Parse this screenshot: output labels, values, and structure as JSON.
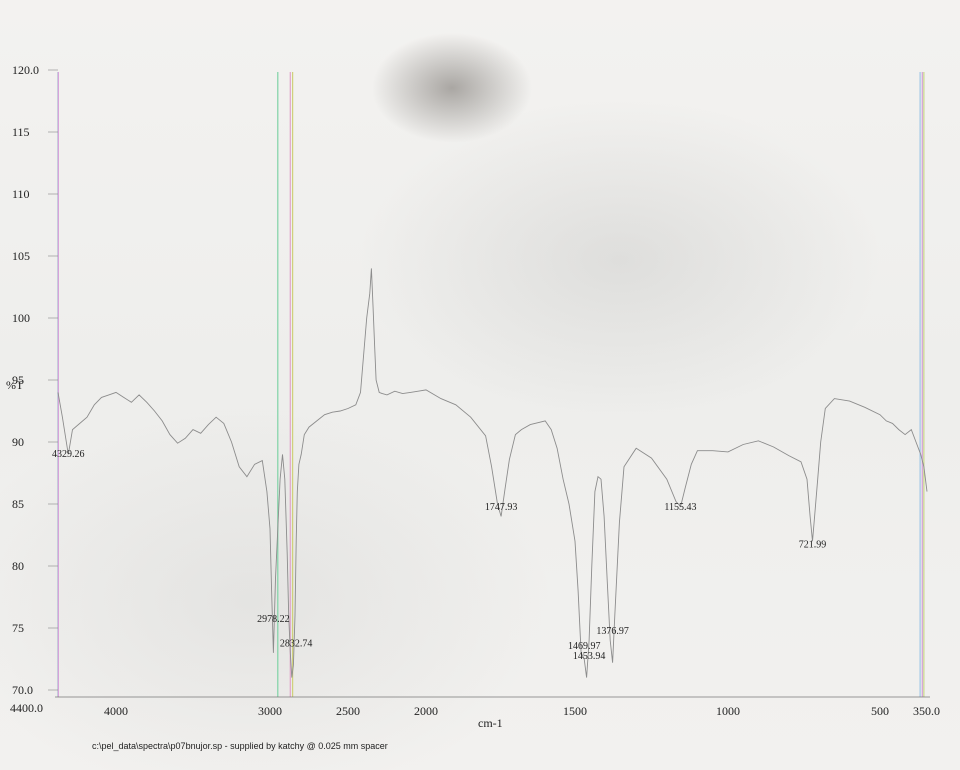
{
  "chart_data": {
    "type": "line",
    "title": "",
    "xlabel": "cm-1",
    "ylabel": "%T",
    "xlim": [
      4400.0,
      350.0
    ],
    "ylim": [
      70.0,
      120.0
    ],
    "x_reversed": true,
    "grid": false,
    "x_ticks": [
      {
        "value": 4400,
        "label": "4400.0"
      },
      {
        "value": 4000,
        "label": "4000"
      },
      {
        "value": 3000,
        "label": "3000"
      },
      {
        "value": 2500,
        "label": "2500"
      },
      {
        "value": 2000,
        "label": "2000"
      },
      {
        "value": 1500,
        "label": "1500"
      },
      {
        "value": 1000,
        "label": "1000"
      },
      {
        "value": 500,
        "label": "500"
      },
      {
        "value": 350,
        "label": "350.0"
      }
    ],
    "y_ticks": [
      {
        "value": 120,
        "label": "120.0"
      },
      {
        "value": 115,
        "label": "115"
      },
      {
        "value": 110,
        "label": "110"
      },
      {
        "value": 105,
        "label": "105"
      },
      {
        "value": 100,
        "label": "100"
      },
      {
        "value": 95,
        "label": "95"
      },
      {
        "value": 90,
        "label": "90"
      },
      {
        "value": 85,
        "label": "85"
      },
      {
        "value": 80,
        "label": "80"
      },
      {
        "value": 75,
        "label": "75"
      },
      {
        "value": 70,
        "label": "70.0"
      }
    ],
    "series": [
      {
        "x": [
          4400,
          4370,
          4329,
          4300,
          4250,
          4200,
          4150,
          4100,
          4050,
          4000,
          3950,
          3900,
          3850,
          3800,
          3750,
          3700,
          3650,
          3600,
          3550,
          3500,
          3450,
          3400,
          3350,
          3300,
          3250,
          3200,
          3150,
          3100,
          3050,
          3020,
          3000,
          2990,
          2978,
          2965,
          2950,
          2935,
          2920,
          2905,
          2890,
          2880,
          2870,
          2860,
          2850,
          2840,
          2832,
          2825,
          2815,
          2800,
          2780,
          2750,
          2700,
          2650,
          2600,
          2550,
          2500,
          2450,
          2420,
          2400,
          2380,
          2360,
          2350,
          2340,
          2330,
          2320,
          2300,
          2280,
          2250,
          2200,
          2150,
          2100,
          2050,
          2000,
          1950,
          1900,
          1850,
          1800,
          1780,
          1760,
          1748,
          1735,
          1720,
          1700,
          1680,
          1650,
          1600,
          1580,
          1560,
          1540,
          1520,
          1500,
          1490,
          1480,
          1470,
          1462,
          1454,
          1445,
          1435,
          1425,
          1415,
          1405,
          1395,
          1385,
          1377,
          1370,
          1355,
          1340,
          1300,
          1250,
          1200,
          1170,
          1155,
          1140,
          1120,
          1100,
          1050,
          1000,
          950,
          900,
          850,
          800,
          760,
          740,
          730,
          722,
          715,
          705,
          695,
          680,
          650,
          600,
          550,
          500,
          480,
          460,
          440,
          420,
          400,
          385,
          370,
          360,
          350
        ],
        "y": [
          94,
          92,
          89,
          91,
          91.5,
          92,
          93,
          93.6,
          93.8,
          94,
          93.6,
          93.2,
          93.8,
          93.2,
          92.5,
          91.7,
          90.6,
          89.9,
          90.3,
          91,
          90.7,
          91.4,
          92,
          91.5,
          90,
          88,
          87.2,
          88.2,
          88.5,
          86,
          83,
          78,
          73,
          79,
          83,
          87,
          89,
          87,
          81,
          76,
          73,
          71,
          72,
          76,
          82,
          86,
          88.2,
          89,
          90.6,
          91.2,
          91.7,
          92.2,
          92.4,
          92.5,
          92.7,
          93,
          94,
          97,
          100,
          102,
          104,
          101,
          98,
          95,
          94,
          93.9,
          93.8,
          94.1,
          93.9,
          94,
          94.1,
          94.2,
          93.5,
          93,
          92,
          90.5,
          88,
          85,
          84,
          86.2,
          88.6,
          90.6,
          91,
          91.4,
          91.7,
          91,
          89.5,
          87,
          85,
          82,
          78,
          73,
          72.5,
          71,
          74,
          80,
          86,
          87.2,
          87,
          84,
          79,
          74,
          72.2,
          76,
          83.5,
          88,
          89.5,
          88.7,
          87,
          85.2,
          84.8,
          86.3,
          88.2,
          89.3,
          89.3,
          89.2,
          89.8,
          90.1,
          89.6,
          88.9,
          88.4,
          87,
          84,
          82,
          84,
          87,
          90,
          92.7,
          93.5,
          93.3,
          92.8,
          92.2,
          91.7,
          91.5,
          91,
          90.6,
          91,
          90,
          89,
          88,
          86
        ]
      }
    ],
    "annotations": [
      {
        "x": 4329.26,
        "y": 88.8,
        "label": "4329.26"
      },
      {
        "x": 2978.22,
        "y": 75.5,
        "label": "2978.22"
      },
      {
        "x": 2832.74,
        "y": 73.5,
        "label": "2832.74"
      },
      {
        "x": 1747.93,
        "y": 84.5,
        "label": "1747.93"
      },
      {
        "x": 1469.97,
        "y": 73.3,
        "label": "1469.97"
      },
      {
        "x": 1453.94,
        "y": 72.5,
        "label": "1453.94"
      },
      {
        "x": 1376.97,
        "y": 74.5,
        "label": "1376.97"
      },
      {
        "x": 1155.43,
        "y": 84.5,
        "label": "1155.43"
      },
      {
        "x": 721.99,
        "y": 81.5,
        "label": "721.99"
      }
    ],
    "artifact_lines": [
      {
        "x": 4400,
        "color": "#7fd3c8"
      },
      {
        "x": 4398,
        "color": "#d79ad8"
      },
      {
        "x": 2950,
        "color": "#7fd3a6"
      },
      {
        "x": 2870,
        "color": "#e0a3c9"
      },
      {
        "x": 2855,
        "color": "#cfd07a"
      },
      {
        "x": 372,
        "color": "#9fc7e6"
      },
      {
        "x": 365,
        "color": "#d3a0d6"
      },
      {
        "x": 360,
        "color": "#c9d688"
      }
    ]
  },
  "footer": {
    "text": "c:\\pel_data\\spectra\\p07bnujor.sp - supplied by katchy @ 0.025 mm spacer"
  },
  "colors": {
    "trace": "#8c8c8c",
    "axis": "#555555",
    "text": "#222222"
  }
}
